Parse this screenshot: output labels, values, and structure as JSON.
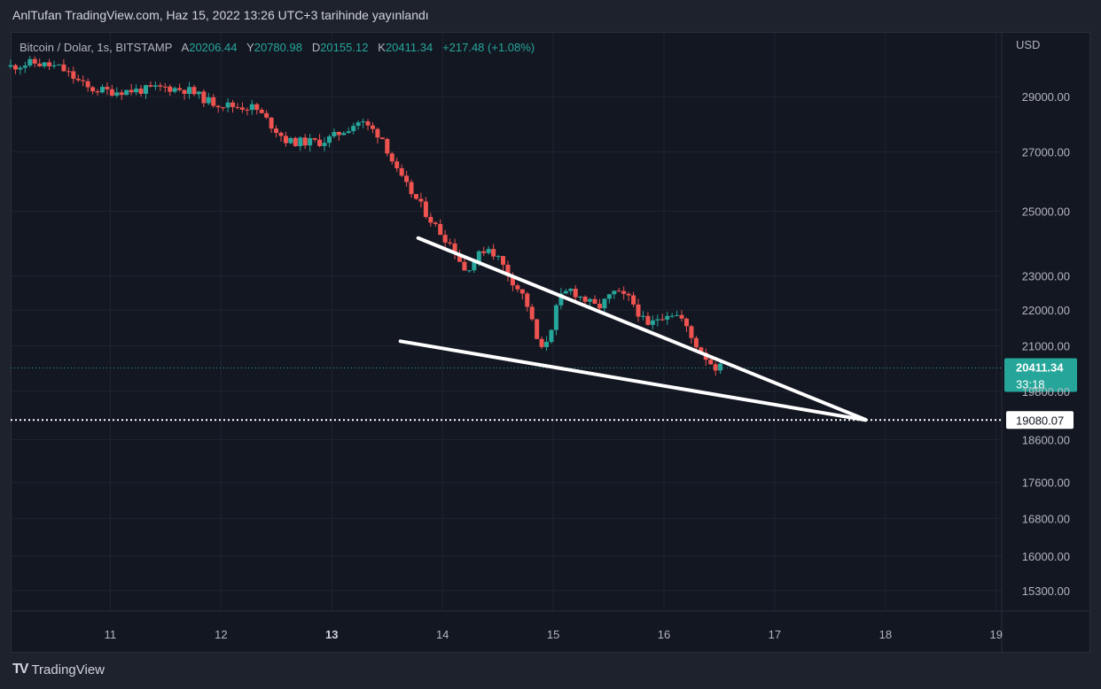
{
  "header": {
    "published": "AnlTufan TradingView.com, Haz 15, 2022 13:26 UTC+3 tarihinde yayınlandı"
  },
  "legend": {
    "symbol": "Bitcoin / Dolar, 1s, BITSTAMP",
    "open_label": "A",
    "open": "20206.44",
    "high_label": "Y",
    "high": "20780.98",
    "low_label": "D",
    "low": "20155.12",
    "close_label": "K",
    "close": "20411.34",
    "change": "+217.48 (+1.08%)"
  },
  "footer": {
    "brand": "TradingView"
  },
  "colors": {
    "up": "#26a69a",
    "down": "#ef5350",
    "background": "#131722",
    "grid": "#1f2430",
    "text": "#b2b5be",
    "trendline": "#ffffff"
  },
  "chart_data": {
    "type": "candlestick",
    "currency": "USD",
    "y_scale": "log",
    "ylim": [
      14900,
      31500
    ],
    "xlim": [
      10.1,
      19.05
    ],
    "x_ticks": [
      "11",
      "12",
      "13",
      "14",
      "15",
      "16",
      "17",
      "18",
      "19"
    ],
    "x_tick_values": [
      11,
      12,
      13,
      14,
      15,
      16,
      17,
      18,
      19
    ],
    "bold_x_ticks": [
      "13"
    ],
    "y_ticks": [
      "29000.00",
      "27000.00",
      "25000.00",
      "23000.00",
      "22000.00",
      "21000.00",
      "19800.00",
      "18600.00",
      "17600.00",
      "16800.00",
      "16000.00",
      "15300.00"
    ],
    "y_tick_values": [
      29000,
      27000,
      25000,
      23000,
      22000,
      21000,
      19800,
      18600,
      17600,
      16800,
      16000,
      15300
    ],
    "last_price": {
      "value": 20411.34,
      "label": "20411.34",
      "countdown": "33:18"
    },
    "marked_level": {
      "value": 19080.07,
      "label": "19080.07"
    },
    "trendlines": [
      {
        "name": "upper",
        "x1": 13.78,
        "y1": 24150,
        "x2": 17.82,
        "y2": 19090
      },
      {
        "name": "lower",
        "x1": 13.62,
        "y1": 21130,
        "x2": 17.82,
        "y2": 19080
      }
    ],
    "keypoints": [
      [
        10.1,
        30150
      ],
      [
        10.3,
        30300
      ],
      [
        10.55,
        30100
      ],
      [
        10.8,
        29300
      ],
      [
        11.0,
        29200
      ],
      [
        11.3,
        29250
      ],
      [
        11.5,
        29350
      ],
      [
        11.7,
        29250
      ],
      [
        11.9,
        28800
      ],
      [
        12.1,
        28650
      ],
      [
        12.3,
        28600
      ],
      [
        12.6,
        27350
      ],
      [
        12.9,
        27350
      ],
      [
        13.0,
        27500
      ],
      [
        13.25,
        28100
      ],
      [
        13.45,
        27550
      ],
      [
        13.6,
        26200
      ],
      [
        13.8,
        25200
      ],
      [
        13.95,
        24450
      ],
      [
        14.1,
        23850
      ],
      [
        14.2,
        23150
      ],
      [
        14.3,
        23500
      ],
      [
        14.4,
        23900
      ],
      [
        14.5,
        23550
      ],
      [
        14.6,
        23000
      ],
      [
        14.75,
        22300
      ],
      [
        14.85,
        21200
      ],
      [
        14.9,
        20850
      ],
      [
        14.98,
        21500
      ],
      [
        15.05,
        22300
      ],
      [
        15.15,
        22600
      ],
      [
        15.28,
        22300
      ],
      [
        15.4,
        22050
      ],
      [
        15.55,
        22500
      ],
      [
        15.7,
        22300
      ],
      [
        15.85,
        21500
      ],
      [
        15.95,
        21800
      ],
      [
        16.05,
        21950
      ],
      [
        16.15,
        21800
      ],
      [
        16.25,
        21200
      ],
      [
        16.35,
        20800
      ],
      [
        16.45,
        20450
      ],
      [
        16.55,
        20411
      ]
    ]
  }
}
